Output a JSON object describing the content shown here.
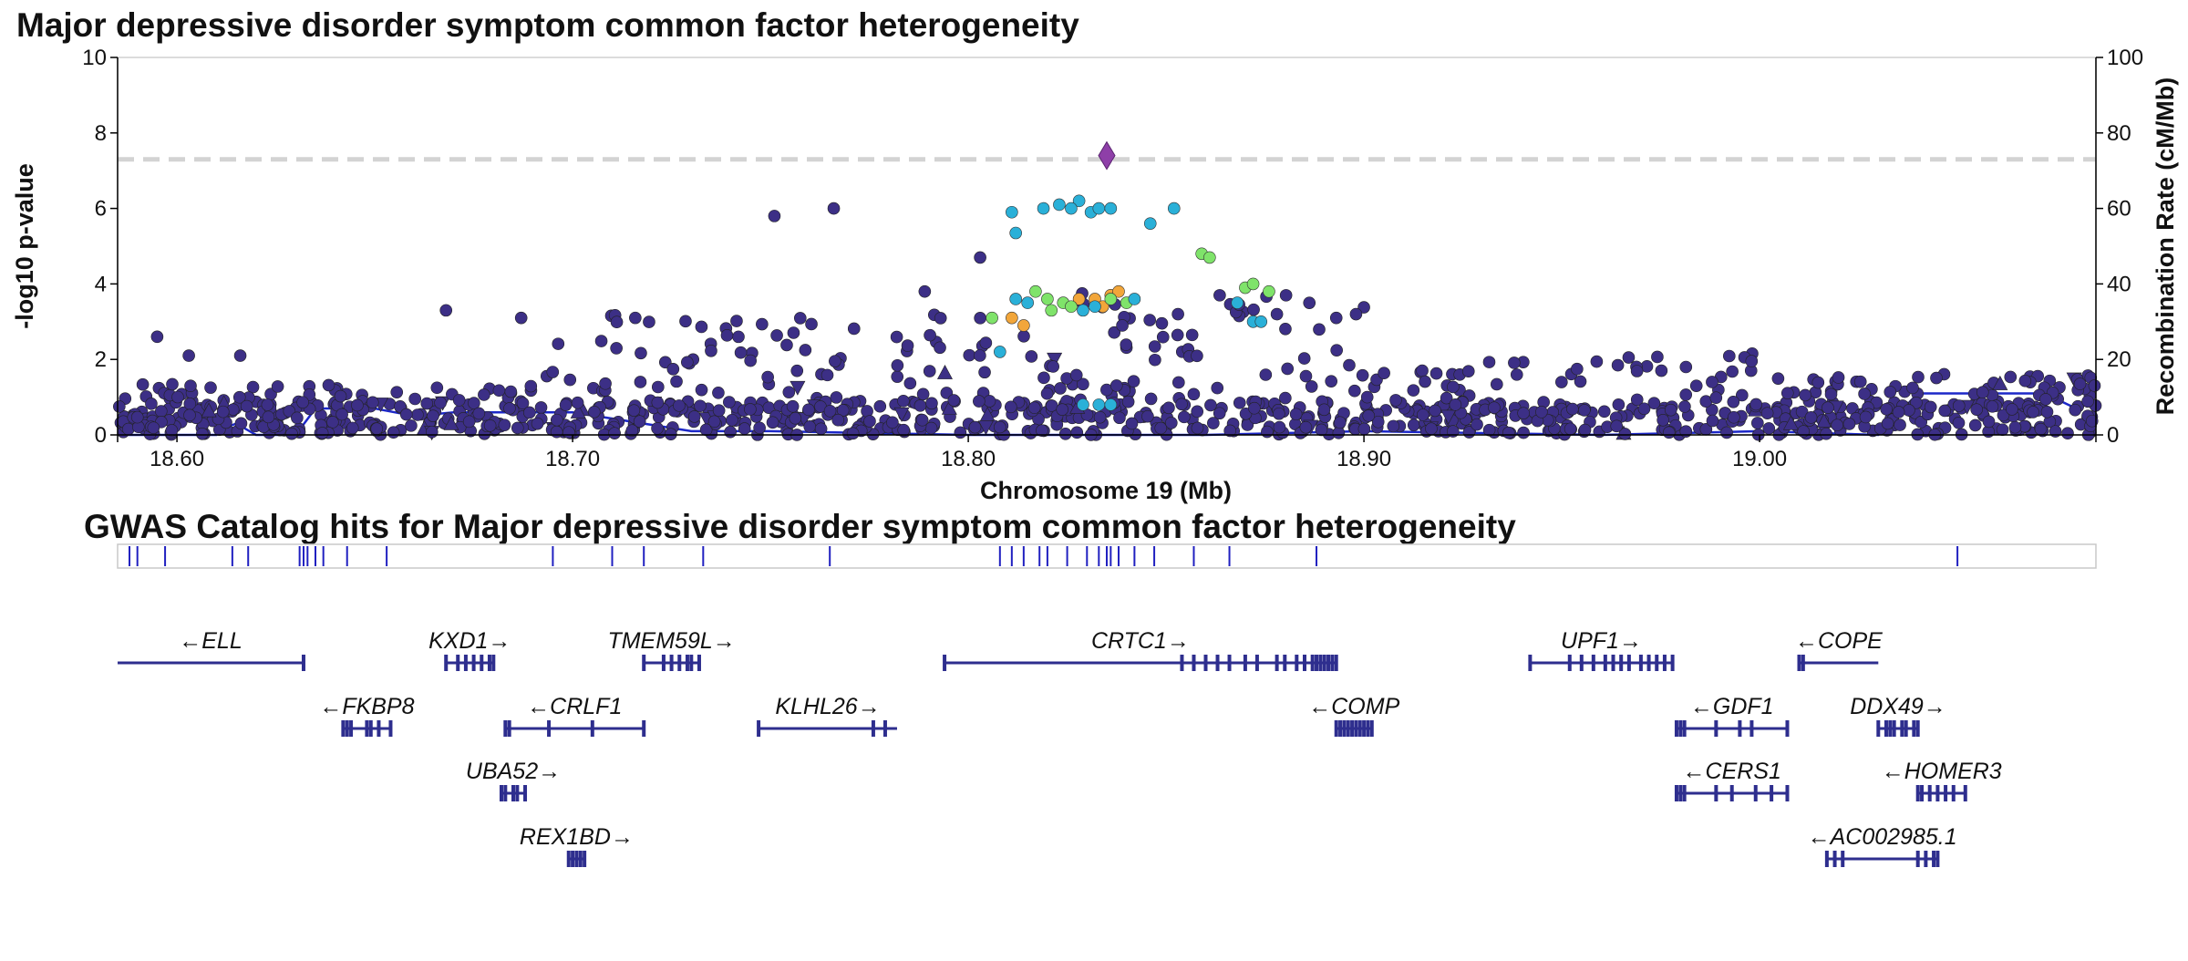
{
  "chart_data": [
    {
      "type": "scatter",
      "title": "Major depressive disorder symptom common factor heterogeneity",
      "xlabel": "Chromosome 19 (Mb)",
      "ylabel": "-log10 p-value",
      "y2label": "Recombination Rate (cM/Mb)",
      "xlim": [
        18.585,
        19.085
      ],
      "ylim": [
        0,
        10
      ],
      "y2lim": [
        0,
        100
      ],
      "x_ticks": [
        "18.60",
        "18.70",
        "18.80",
        "18.90",
        "19.00"
      ],
      "x_tick_values": [
        18.6,
        18.7,
        18.8,
        18.9,
        19.0
      ],
      "y_ticks": [
        "0",
        "2",
        "4",
        "6",
        "8",
        "10"
      ],
      "y2_ticks": [
        "0",
        "20",
        "40",
        "60",
        "80",
        "100"
      ],
      "significance_line": 7.3,
      "lead_snp": {
        "x": 18.835,
        "y": 7.4,
        "color": "#8e3fa8"
      },
      "colors": {
        "r2_low": "#3c2f86",
        "r2_blue": "#2ab0d8",
        "r2_green": "#7fe36a",
        "r2_orange": "#f2a63a",
        "recomb": "#1d28c8",
        "sigline": "#d3d3d3"
      },
      "highlighted_points": {
        "blue": [
          [
            18.811,
            5.9
          ],
          [
            18.819,
            6.0
          ],
          [
            18.823,
            6.1
          ],
          [
            18.828,
            6.2
          ],
          [
            18.831,
            5.9
          ],
          [
            18.833,
            6.0
          ],
          [
            18.836,
            6.0
          ],
          [
            18.846,
            5.6
          ],
          [
            18.852,
            6.0
          ],
          [
            18.812,
            5.35
          ],
          [
            18.826,
            6.0
          ],
          [
            18.812,
            3.6
          ],
          [
            18.815,
            3.5
          ],
          [
            18.832,
            3.4
          ],
          [
            18.829,
            3.3
          ],
          [
            18.842,
            3.6
          ],
          [
            18.808,
            2.2
          ],
          [
            18.868,
            3.5
          ],
          [
            18.872,
            3.0
          ],
          [
            18.874,
            3.0
          ],
          [
            18.829,
            0.8
          ],
          [
            18.833,
            0.8
          ],
          [
            18.836,
            0.8
          ]
        ],
        "green": [
          [
            18.817,
            3.8
          ],
          [
            18.82,
            3.6
          ],
          [
            18.824,
            3.5
          ],
          [
            18.826,
            3.4
          ],
          [
            18.836,
            3.6
          ],
          [
            18.84,
            3.5
          ],
          [
            18.859,
            4.8
          ],
          [
            18.861,
            4.7
          ],
          [
            18.87,
            3.9
          ],
          [
            18.872,
            4.0
          ],
          [
            18.876,
            3.8
          ],
          [
            18.821,
            3.3
          ],
          [
            18.806,
            3.1
          ]
        ],
        "orange": [
          [
            18.811,
            3.1
          ],
          [
            18.814,
            2.9
          ],
          [
            18.832,
            3.6
          ],
          [
            18.836,
            3.7
          ],
          [
            18.838,
            3.8
          ],
          [
            18.828,
            3.6
          ],
          [
            18.834,
            3.4
          ]
        ]
      },
      "recombination_rate": [
        [
          18.585,
          0
        ],
        [
          18.61,
          0
        ],
        [
          18.611,
          1.5
        ],
        [
          18.615,
          3
        ],
        [
          18.62,
          0
        ],
        [
          18.63,
          0
        ],
        [
          18.635,
          7
        ],
        [
          18.64,
          7
        ],
        [
          18.65,
          7
        ],
        [
          18.66,
          5
        ],
        [
          18.67,
          6
        ],
        [
          18.7,
          6
        ],
        [
          18.73,
          1
        ],
        [
          18.75,
          1
        ],
        [
          18.8,
          0
        ],
        [
          18.86,
          0
        ],
        [
          18.9,
          1
        ],
        [
          18.96,
          0
        ],
        [
          19.0,
          1
        ],
        [
          19.03,
          0
        ],
        [
          19.04,
          11
        ],
        [
          19.06,
          11
        ],
        [
          19.072,
          11
        ],
        [
          19.08,
          7
        ],
        [
          19.085,
          9
        ]
      ]
    },
    {
      "type": "table",
      "title": "GWAS Catalog hits for Major depressive disorder symptom common factor heterogeneity",
      "hit_positions": [
        18.588,
        18.59,
        18.597,
        18.614,
        18.618,
        18.631,
        18.632,
        18.633,
        18.635,
        18.637,
        18.643,
        18.653,
        18.695,
        18.71,
        18.718,
        18.733,
        18.765,
        18.808,
        18.811,
        18.814,
        18.818,
        18.82,
        18.825,
        18.83,
        18.833,
        18.835,
        18.836,
        18.838,
        18.842,
        18.847,
        18.857,
        18.866,
        18.888,
        19.05
      ],
      "genes": [
        {
          "name": "ELL",
          "label": "←ELL",
          "row": 0,
          "start": 18.585,
          "end": 18.632,
          "exons": [
            18.632
          ]
        },
        {
          "name": "KXD1",
          "label": "KXD1→",
          "row": 0,
          "start": 18.668,
          "end": 18.68,
          "exons": [
            18.668,
            18.671,
            18.673,
            18.675,
            18.677,
            18.679,
            18.68
          ]
        },
        {
          "name": "TMEM59L",
          "label": "TMEM59L→",
          "row": 0,
          "start": 18.718,
          "end": 18.732,
          "exons": [
            18.718,
            18.723,
            18.725,
            18.727,
            18.729,
            18.73,
            18.732
          ]
        },
        {
          "name": "CRTC1",
          "label": "CRTC1→",
          "row": 0,
          "start": 18.794,
          "end": 18.893,
          "exons": [
            18.794,
            18.854,
            18.857,
            18.86,
            18.863,
            18.866,
            18.87,
            18.873,
            18.878,
            18.88,
            18.883,
            18.885,
            18.887,
            18.888,
            18.889,
            18.89,
            18.891,
            18.892,
            18.893
          ]
        },
        {
          "name": "UPF1",
          "label": "UPF1→",
          "row": 0,
          "start": 18.942,
          "end": 18.978,
          "exons": [
            18.942,
            18.952,
            18.955,
            18.958,
            18.961,
            18.963,
            18.965,
            18.967,
            18.97,
            18.972,
            18.974,
            18.976,
            18.978
          ]
        },
        {
          "name": "COPE",
          "label": "←COPE",
          "row": 0,
          "start": 19.01,
          "end": 19.03,
          "exons": [
            19.01,
            19.011
          ]
        },
        {
          "name": "FKBP8",
          "label": "←FKBP8",
          "row": 1,
          "start": 18.642,
          "end": 18.654,
          "exons": [
            18.642,
            18.643,
            18.644,
            18.648,
            18.649,
            18.651,
            18.654
          ]
        },
        {
          "name": "CRLF1",
          "label": "←CRLF1",
          "row": 1,
          "start": 18.683,
          "end": 18.718,
          "exons": [
            18.683,
            18.684,
            18.694,
            18.705,
            18.718
          ]
        },
        {
          "name": "KLHL26",
          "label": "KLHL26→",
          "row": 1,
          "start": 18.747,
          "end": 18.782,
          "exons": [
            18.747,
            18.776,
            18.779
          ]
        },
        {
          "name": "COMP",
          "label": "←COMP",
          "row": 1,
          "start": 18.893,
          "end": 18.902,
          "exons": [
            18.893,
            18.894,
            18.895,
            18.896,
            18.897,
            18.898,
            18.899,
            18.9,
            18.901,
            18.902
          ]
        },
        {
          "name": "GDF1",
          "label": "←GDF1",
          "row": 1,
          "start": 18.979,
          "end": 19.007,
          "exons": [
            18.979,
            18.98,
            18.981,
            18.989,
            18.995,
            18.998,
            19.007
          ]
        },
        {
          "name": "DDX49",
          "label": "DDX49→",
          "row": 1,
          "start": 19.03,
          "end": 19.04,
          "exons": [
            19.03,
            19.032,
            19.033,
            19.034,
            19.036,
            19.037,
            19.039,
            19.04
          ]
        },
        {
          "name": "UBA52",
          "label": "UBA52→",
          "row": 2,
          "start": 18.682,
          "end": 18.688,
          "exons": [
            18.682,
            18.683,
            18.685,
            18.686,
            18.688
          ]
        },
        {
          "name": "CERS1",
          "label": "←CERS1",
          "row": 2,
          "start": 18.979,
          "end": 19.007,
          "exons": [
            18.979,
            18.98,
            18.981,
            18.989,
            18.993,
            18.999,
            19.003,
            19.007
          ]
        },
        {
          "name": "HOMER3",
          "label": "←HOMER3",
          "row": 2,
          "start": 19.04,
          "end": 19.052,
          "exons": [
            19.04,
            19.041,
            19.043,
            19.045,
            19.047,
            19.049,
            19.052
          ]
        },
        {
          "name": "REX1BD",
          "label": "REX1BD→",
          "row": 3,
          "start": 18.699,
          "end": 18.703,
          "exons": [
            18.699,
            18.7,
            18.701,
            18.702,
            18.703
          ]
        },
        {
          "name": "AC002985.1",
          "label": "←AC002985.1",
          "row": 3,
          "start": 19.017,
          "end": 19.045,
          "exons": [
            19.017,
            19.019,
            19.021,
            19.04,
            19.042,
            19.044,
            19.045
          ]
        }
      ]
    }
  ]
}
